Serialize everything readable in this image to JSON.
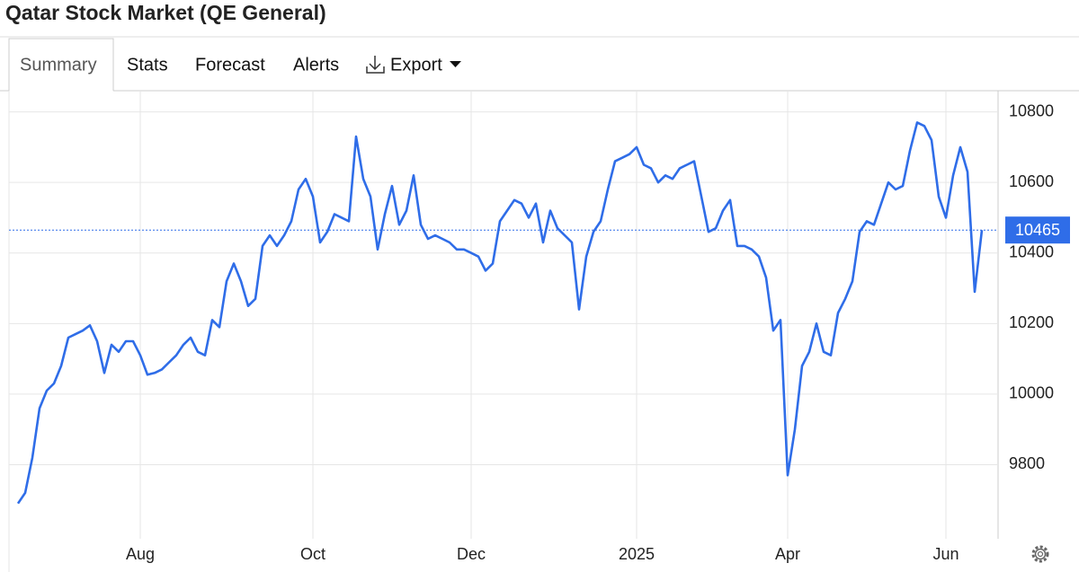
{
  "chart_data": {
    "type": "line",
    "title": "Qatar Stock Market (QE General)",
    "categories": [
      null,
      null,
      null,
      null,
      null,
      null,
      null,
      null,
      null,
      null,
      null,
      null,
      null,
      null,
      null,
      null,
      null,
      "Aug",
      null,
      null,
      null,
      null,
      null,
      null,
      null,
      null,
      null,
      null,
      null,
      null,
      null,
      null,
      null,
      null,
      null,
      null,
      null,
      null,
      null,
      null,
      null,
      "Oct",
      null,
      null,
      null,
      null,
      null,
      null,
      null,
      null,
      null,
      null,
      null,
      null,
      null,
      null,
      null,
      null,
      null,
      null,
      null,
      null,
      null,
      "Dec",
      null,
      null,
      null,
      null,
      null,
      null,
      null,
      null,
      null,
      null,
      null,
      null,
      null,
      null,
      null,
      null,
      null,
      null,
      null,
      null,
      null,
      null,
      "2025",
      null,
      null,
      null,
      null,
      null,
      null,
      null,
      null,
      null,
      null,
      null,
      null,
      null,
      null,
      null,
      null,
      null,
      null,
      null,
      null,
      "Apr",
      null,
      null,
      null,
      null,
      null,
      null,
      null,
      null,
      null,
      null,
      null,
      null,
      null,
      null,
      null,
      null,
      null,
      null,
      null,
      null,
      null,
      "Jun",
      null,
      null,
      null,
      null,
      null
    ],
    "series": [
      {
        "color": "#2f6de8",
        "values": [
          9690,
          9720,
          9820,
          9960,
          10010,
          10030,
          10080,
          10160,
          10170,
          10180,
          10195,
          10150,
          10060,
          10140,
          10120,
          10150,
          10150,
          10110,
          10055,
          10060,
          10070,
          10090,
          10110,
          10140,
          10160,
          10120,
          10110,
          10210,
          10190,
          10320,
          10370,
          10320,
          10250,
          10270,
          10420,
          10450,
          10420,
          10450,
          10490,
          10580,
          10610,
          10560,
          10430,
          10460,
          10510,
          10500,
          10490,
          10730,
          10610,
          10560,
          10410,
          10510,
          10590,
          10480,
          10520,
          10620,
          10480,
          10440,
          10450,
          10440,
          10430,
          10410,
          10410,
          10400,
          10390,
          10350,
          10370,
          10490,
          10520,
          10550,
          10540,
          10500,
          10540,
          10430,
          10520,
          10470,
          10450,
          10430,
          10240,
          10390,
          10460,
          10490,
          10580,
          10660,
          10670,
          10680,
          10700,
          10650,
          10640,
          10600,
          10620,
          10610,
          10640,
          10650,
          10660,
          10560,
          10460,
          10470,
          10520,
          10550,
          10420,
          10420,
          10410,
          10390,
          10330,
          10180,
          10210,
          9770,
          9900,
          10080,
          10120,
          10200,
          10120,
          10110,
          10230,
          10270,
          10320,
          10460,
          10490,
          10480,
          10540,
          10600,
          10580,
          10590,
          10690,
          10770,
          10760,
          10720,
          10560,
          10500,
          10620,
          10700,
          10630,
          10290,
          10465
        ]
      }
    ],
    "ylim": [
      9590,
      10860
    ],
    "yticks": [
      9800,
      10000,
      10200,
      10400,
      10600,
      10800
    ],
    "grid": true
  },
  "tabs": [
    "Summary",
    "Stats",
    "Forecast",
    "Alerts",
    "Export"
  ]
}
